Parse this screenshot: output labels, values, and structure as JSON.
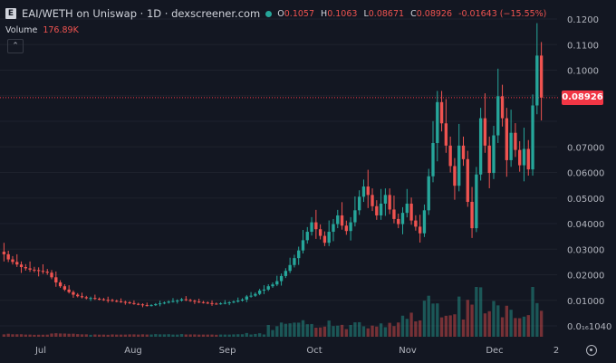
{
  "header": {
    "symbol_icon": "E",
    "title": "EAI/WETH on Uniswap · 1D · dexscreener.com",
    "status_color": "#26a69a",
    "ohlc": {
      "o_label": "O",
      "o": "0.1057",
      "h_label": "H",
      "h": "0.1063",
      "l_label": "L",
      "l": "0.08671",
      "c_label": "C",
      "c": "0.08926",
      "change": "-0.01643 (−15.55%)"
    },
    "volume_label": "Volume",
    "volume_value": "176.89K",
    "collapse_icon": "chevron-up-icon"
  },
  "price_tag": "0.08926",
  "colors": {
    "background": "#131722",
    "up": "#26a69a",
    "down": "#ef5350",
    "tag": "#f23645",
    "text": "#d1d4dc"
  },
  "chart_data": {
    "type": "candlestick",
    "y_axis_labels": [
      "0.1200",
      "0.1100",
      "0.1000",
      "0.08926",
      "0.07000",
      "0.06000",
      "0.05000",
      "0.04000",
      "0.03000",
      "0.02000",
      "0.01000",
      "0.0₁₆1040"
    ],
    "ylim": [
      0,
      0.12
    ],
    "x_axis_labels": [
      "Jul",
      "Aug",
      "Sep",
      "Oct",
      "Nov",
      "Dec",
      "2"
    ],
    "current_price": 0.08926,
    "series": [
      {
        "name": "Price",
        "points": [
          [
            0.029,
            0.028
          ],
          [
            0.028,
            0.026
          ],
          [
            0.026,
            0.025
          ],
          [
            0.025,
            0.024
          ],
          [
            0.024,
            0.023
          ],
          [
            0.023,
            0.0225
          ],
          [
            0.0225,
            0.022
          ],
          [
            0.022,
            0.0218
          ],
          [
            0.0218,
            0.0215
          ],
          [
            0.0215,
            0.0212
          ],
          [
            0.0212,
            0.0208
          ],
          [
            0.0208,
            0.019
          ],
          [
            0.019,
            0.017
          ],
          [
            0.017,
            0.0155
          ],
          [
            0.0155,
            0.0142
          ],
          [
            0.0142,
            0.0132
          ],
          [
            0.0132,
            0.0122
          ],
          [
            0.0122,
            0.0116
          ],
          [
            0.0116,
            0.0112
          ],
          [
            0.0112,
            0.0108
          ],
          [
            0.0108,
            0.0109
          ],
          [
            0.0109,
            0.0106
          ],
          [
            0.0106,
            0.0104
          ],
          [
            0.0104,
            0.0102
          ],
          [
            0.0102,
            0.0101
          ],
          [
            0.0101,
            0.0098
          ],
          [
            0.0098,
            0.0096
          ],
          [
            0.0096,
            0.0094
          ],
          [
            0.0094,
            0.0092
          ],
          [
            0.0092,
            0.0089
          ],
          [
            0.0089,
            0.0086
          ],
          [
            0.0086,
            0.0084
          ],
          [
            0.0084,
            0.0081
          ],
          [
            0.0081,
            0.0079
          ],
          [
            0.0079,
            0.0081
          ],
          [
            0.0081,
            0.0085
          ],
          [
            0.0085,
            0.0088
          ],
          [
            0.0088,
            0.0091
          ],
          [
            0.0091,
            0.0095
          ],
          [
            0.0095,
            0.0097
          ],
          [
            0.0097,
            0.0099
          ],
          [
            0.0099,
            0.0104
          ],
          [
            0.0104,
            0.0101
          ],
          [
            0.0101,
            0.0098
          ],
          [
            0.0098,
            0.0095
          ],
          [
            0.0095,
            0.0093
          ],
          [
            0.0093,
            0.0091
          ],
          [
            0.0091,
            0.0089
          ],
          [
            0.0089,
            0.0087
          ],
          [
            0.0087,
            0.0086
          ],
          [
            0.0086,
            0.0088
          ],
          [
            0.0088,
            0.009
          ],
          [
            0.009,
            0.0092
          ],
          [
            0.0092,
            0.0095
          ],
          [
            0.0095,
            0.0099
          ],
          [
            0.0099,
            0.0103
          ],
          [
            0.0103,
            0.0115
          ],
          [
            0.0115,
            0.0118
          ],
          [
            0.0118,
            0.0125
          ],
          [
            0.0125,
            0.0138
          ],
          [
            0.0138,
            0.0142
          ],
          [
            0.0142,
            0.0155
          ],
          [
            0.0155,
            0.0162
          ],
          [
            0.0162,
            0.0175
          ],
          [
            0.0175,
            0.0195
          ],
          [
            0.0195,
            0.0215
          ],
          [
            0.0215,
            0.0238
          ],
          [
            0.0238,
            0.0265
          ],
          [
            0.0265,
            0.0295
          ],
          [
            0.0295,
            0.0335
          ],
          [
            0.0335,
            0.0368
          ],
          [
            0.0368,
            0.0405
          ],
          [
            0.0405,
            0.0378
          ],
          [
            0.0378,
            0.0352
          ],
          [
            0.0352,
            0.0325
          ],
          [
            0.0325,
            0.0368
          ],
          [
            0.0368,
            0.0398
          ],
          [
            0.0398,
            0.0432
          ],
          [
            0.0432,
            0.0392
          ],
          [
            0.0392,
            0.0371
          ],
          [
            0.0371,
            0.0405
          ],
          [
            0.0405,
            0.0452
          ],
          [
            0.0452,
            0.0505
          ],
          [
            0.0505,
            0.0545
          ],
          [
            0.0545,
            0.0512
          ],
          [
            0.0512,
            0.0468
          ],
          [
            0.0468,
            0.0432
          ],
          [
            0.0432,
            0.0478
          ],
          [
            0.0478,
            0.0512
          ],
          [
            0.0512,
            0.0455
          ],
          [
            0.0455,
            0.0418
          ],
          [
            0.0418,
            0.0398
          ],
          [
            0.0398,
            0.0442
          ],
          [
            0.0442,
            0.0478
          ],
          [
            0.0478,
            0.0412
          ],
          [
            0.0412,
            0.0388
          ],
          [
            0.0388,
            0.0362
          ],
          [
            0.0362,
            0.0452
          ],
          [
            0.0452,
            0.0585
          ],
          [
            0.0585,
            0.0715
          ],
          [
            0.0715,
            0.0875
          ],
          [
            0.0875,
            0.0792
          ],
          [
            0.0792,
            0.0705
          ],
          [
            0.0705,
            0.0625
          ],
          [
            0.0625,
            0.0548
          ],
          [
            0.0548,
            0.0705
          ],
          [
            0.0705,
            0.0652
          ],
          [
            0.0652,
            0.0485
          ],
          [
            0.0485,
            0.0382
          ],
          [
            0.0382,
            0.0592
          ],
          [
            0.0592,
            0.0812
          ],
          [
            0.0812,
            0.0705
          ],
          [
            0.0705,
            0.0598
          ],
          [
            0.0598,
            0.0745
          ],
          [
            0.0745,
            0.0898
          ],
          [
            0.0898,
            0.0812
          ],
          [
            0.0812,
            0.0648
          ],
          [
            0.0648,
            0.0755
          ],
          [
            0.0755,
            0.0688
          ],
          [
            0.0688,
            0.0628
          ],
          [
            0.0628,
            0.0692
          ],
          [
            0.0692,
            0.0612
          ],
          [
            0.0612,
            0.0862
          ],
          [
            0.0862,
            0.1057
          ],
          [
            0.1057,
            0.08926
          ]
        ]
      }
    ]
  }
}
